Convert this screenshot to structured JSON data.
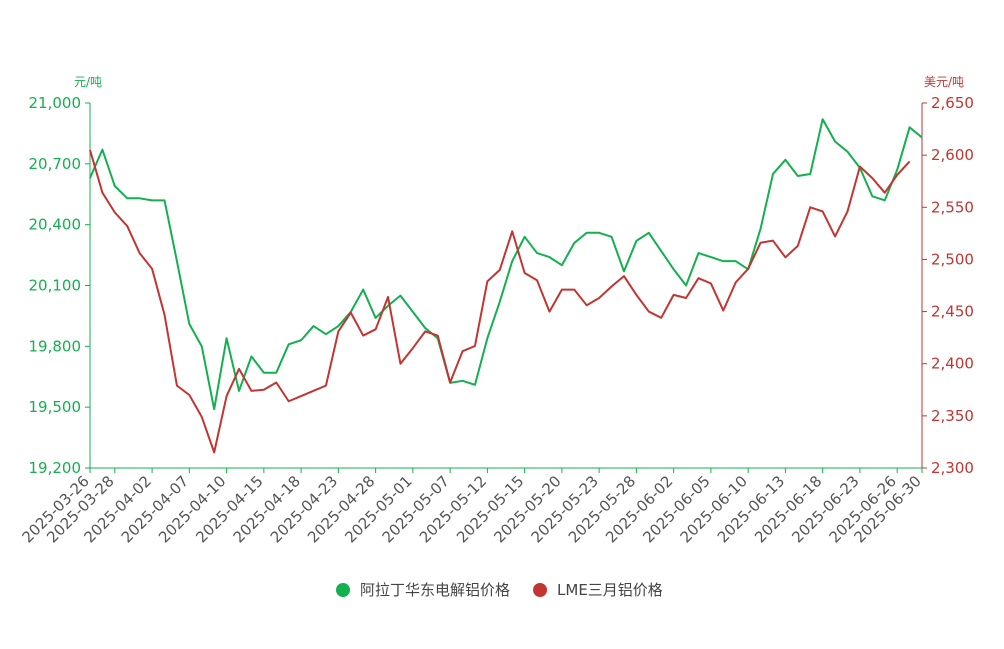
{
  "chart_data": {
    "type": "line",
    "y_unit": "元/吨",
    "y2_unit": "美元/吨",
    "categories": [
      "2025-03-26",
      null,
      "2025-03-28",
      null,
      null,
      "2025-04-02",
      null,
      null,
      "2025-04-07",
      null,
      null,
      "2025-04-10",
      null,
      null,
      "2025-04-15",
      null,
      null,
      "2025-04-18",
      null,
      null,
      "2025-04-23",
      null,
      null,
      "2025-04-28",
      null,
      null,
      "2025-05-01",
      null,
      null,
      "2025-05-07",
      null,
      null,
      "2025-05-12",
      null,
      null,
      "2025-05-15",
      null,
      null,
      "2025-05-20",
      null,
      null,
      "2025-05-23",
      null,
      null,
      "2025-05-28",
      null,
      null,
      "2025-06-02",
      null,
      null,
      "2025-06-05",
      null,
      null,
      "2025-06-10",
      null,
      null,
      "2025-06-13",
      null,
      null,
      "2025-06-18",
      null,
      null,
      "2025-06-23",
      null,
      null,
      "2025-06-26",
      null,
      "2025-06-30"
    ],
    "series": [
      {
        "name": "阿拉丁华东电解铝价格",
        "color": "#13b04f",
        "axis": "y",
        "values": [
          20630,
          20770,
          20590,
          20530,
          20530,
          20520,
          20520,
          20220,
          19910,
          19800,
          19490,
          19840,
          19580,
          19750,
          19670,
          19670,
          19810,
          19830,
          19900,
          19860,
          19900,
          19970,
          20080,
          19940,
          20000,
          20050,
          19970,
          19890,
          19840,
          19620,
          19630,
          19610,
          19840,
          20020,
          20220,
          20340,
          20260,
          20240,
          20200,
          20310,
          20360,
          20360,
          20340,
          20170,
          20320,
          20360,
          20270,
          20180,
          20100,
          20260,
          20240,
          20220,
          20220,
          20180,
          20380,
          20650,
          20720,
          20640,
          20650,
          20920,
          20810,
          20760,
          20680,
          20540,
          20520,
          20670,
          20880,
          20830
        ]
      },
      {
        "name": "LME三月铝价格",
        "color": "#c23531",
        "axis": "y2",
        "values": [
          2605,
          2564,
          2545,
          2532,
          2506,
          2491,
          2447,
          2379,
          2370,
          2349,
          2315,
          2369,
          2395,
          2374,
          2375,
          2382,
          2364,
          2369,
          2374,
          2379,
          2431,
          2449,
          2427,
          2433,
          2464,
          2400,
          2415,
          2431,
          2427,
          2382,
          2412,
          2417,
          2479,
          2490,
          2527,
          2487,
          2480,
          2450,
          2471,
          2471,
          2456,
          2463,
          2474,
          2484,
          2466,
          2450,
          2444,
          2466,
          2463,
          2482,
          2477,
          2451,
          2478,
          2491,
          2516,
          2518,
          2502,
          2513,
          2550,
          2546,
          2522,
          2546,
          2589,
          2578,
          2564,
          2581,
          2594,
          null
        ]
      }
    ],
    "ylim": [
      19200,
      21000
    ],
    "yticks": [
      {
        "value": 19200,
        "label": "19,200"
      },
      {
        "value": 19500,
        "label": "19,500"
      },
      {
        "value": 19800,
        "label": "19,800"
      },
      {
        "value": 20100,
        "label": "20,100"
      },
      {
        "value": 20400,
        "label": "20,400"
      },
      {
        "value": 20700,
        "label": "20,700"
      },
      {
        "value": 21000,
        "label": "21,000"
      }
    ],
    "y2lim": [
      2300,
      2650
    ],
    "y2ticks": [
      {
        "value": 2300,
        "label": "2,300"
      },
      {
        "value": 2350,
        "label": "2,350"
      },
      {
        "value": 2400,
        "label": "2,400"
      },
      {
        "value": 2450,
        "label": "2,450"
      },
      {
        "value": 2500,
        "label": "2,500"
      },
      {
        "value": 2550,
        "label": "2,550"
      },
      {
        "value": 2600,
        "label": "2,600"
      },
      {
        "value": 2650,
        "label": "2,650"
      }
    ],
    "legend": "bottom"
  }
}
